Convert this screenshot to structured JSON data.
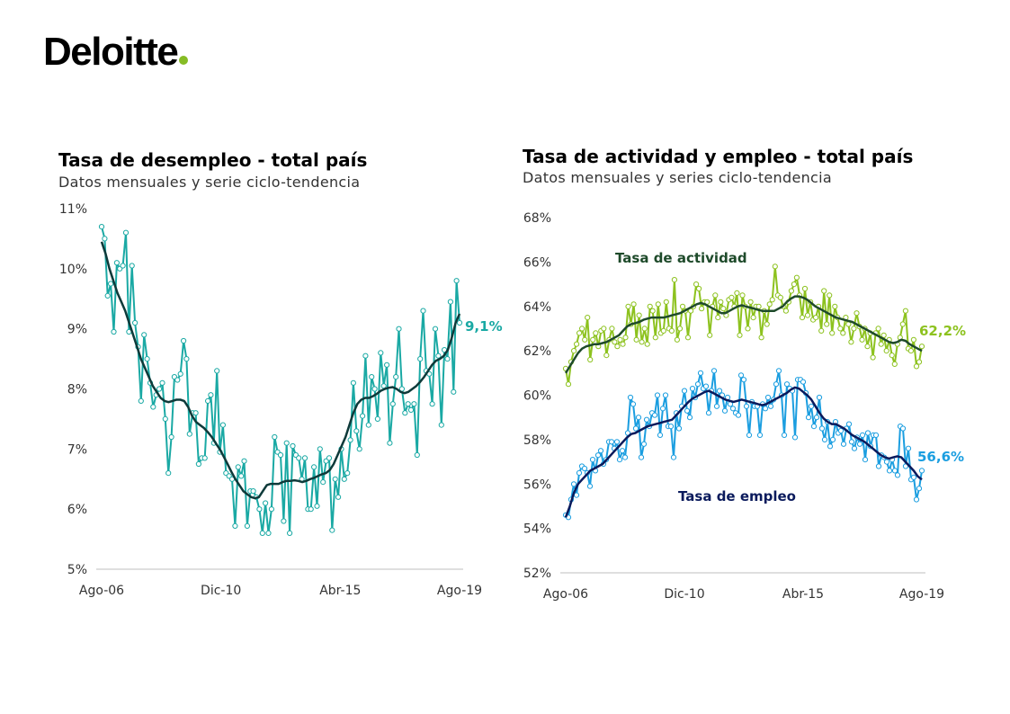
{
  "logo": {
    "text": "Deloitte",
    "dot_color": "#86bc25"
  },
  "colors": {
    "unemp_raw": "#1aa9a4",
    "unemp_trend": "#0e3a3a",
    "act_raw": "#8dc21f",
    "act_trend": "#1e4a2a",
    "emp_raw": "#1b9ee0",
    "emp_trend": "#0a1a5c",
    "axis": "#bfbfbf"
  },
  "chart_data": [
    {
      "type": "line",
      "title": "Tasa de desempleo - total país",
      "subtitle": "Datos mensuales y serie ciclo-tendencia",
      "x_tick_labels": [
        "Ago-06",
        "Dic-10",
        "Abr-15",
        "Ago-19"
      ],
      "y_tick_labels": [
        "5%",
        "6%",
        "7%",
        "8%",
        "9%",
        "10%",
        "11%"
      ],
      "ylim": [
        5,
        11
      ],
      "x_range": [
        "Ago-06",
        "Ago-19"
      ],
      "end_value_label": "9,1%",
      "series": [
        {
          "role": "monthly",
          "values": [
            10.7,
            10.5,
            9.55,
            9.75,
            8.95,
            10.1,
            10.0,
            10.05,
            10.6,
            8.95,
            10.05,
            9.1,
            8.7,
            7.8,
            8.9,
            8.5,
            8.1,
            7.7,
            7.9,
            8.0,
            8.1,
            7.5,
            6.6,
            7.2,
            8.2,
            8.15,
            8.25,
            8.8,
            8.5,
            7.25,
            7.6,
            7.6,
            6.75,
            6.85,
            6.85,
            7.8,
            7.9,
            7.1,
            8.3,
            6.95,
            7.4,
            6.6,
            6.55,
            6.5,
            5.72,
            6.7,
            6.55,
            6.8,
            5.72,
            6.3,
            6.3,
            6.2,
            6.0,
            5.6,
            6.1,
            5.6,
            6.0,
            7.2,
            6.95,
            6.9,
            5.8,
            7.1,
            5.6,
            7.05,
            6.9,
            6.85,
            6.5,
            6.85,
            6.0,
            6.0,
            6.7,
            6.05,
            7.0,
            6.45,
            6.8,
            6.85,
            5.65,
            6.5,
            6.2,
            7.0,
            6.5,
            6.6,
            7.15,
            8.1,
            7.3,
            7.0,
            7.55,
            8.55,
            7.4,
            8.2,
            8.0,
            7.5,
            8.6,
            8.05,
            8.4,
            7.1,
            7.75,
            8.2,
            9.0,
            8.0,
            7.6,
            7.75,
            7.65,
            7.75,
            6.9,
            8.5,
            9.3,
            8.3,
            8.25,
            7.75,
            9.0,
            8.55,
            7.4,
            8.65,
            8.5,
            9.45,
            7.95,
            9.8,
            9.1
          ]
        },
        {
          "role": "trend",
          "values": [
            10.45,
            10.25,
            10.0,
            9.8,
            9.6,
            9.45,
            9.3,
            9.1,
            8.9,
            8.7,
            8.5,
            8.35,
            8.2,
            8.05,
            7.95,
            7.85,
            7.8,
            7.78,
            7.8,
            7.82,
            7.82,
            7.8,
            7.7,
            7.55,
            7.45,
            7.4,
            7.35,
            7.28,
            7.2,
            7.1,
            7.0,
            6.88,
            6.75,
            6.62,
            6.5,
            6.4,
            6.3,
            6.25,
            6.2,
            6.18,
            6.2,
            6.3,
            6.4,
            6.42,
            6.42,
            6.42,
            6.45,
            6.47,
            6.47,
            6.48,
            6.47,
            6.45,
            6.47,
            6.5,
            6.52,
            6.55,
            6.58,
            6.6,
            6.65,
            6.75,
            6.9,
            7.05,
            7.2,
            7.4,
            7.6,
            7.75,
            7.82,
            7.85,
            7.85,
            7.88,
            7.92,
            7.97,
            8.0,
            8.02,
            8.03,
            8.0,
            7.95,
            7.93,
            7.95,
            8.0,
            8.05,
            8.12,
            8.2,
            8.3,
            8.4,
            8.47,
            8.5,
            8.55,
            8.65,
            8.85,
            9.1,
            9.25
          ]
        }
      ]
    },
    {
      "type": "line",
      "title": "Tasa de actividad y empleo - total país",
      "subtitle": "Datos mensuales y series ciclo-tendencia",
      "x_tick_labels": [
        "Ago-06",
        "Dic-10",
        "Abr-15",
        "Ago-19"
      ],
      "y_tick_labels": [
        "52%",
        "54%",
        "56%",
        "58%",
        "60%",
        "62%",
        "64%",
        "66%",
        "68%"
      ],
      "ylim": [
        52,
        68
      ],
      "x_range": [
        "Ago-06",
        "Ago-19"
      ],
      "series": [
        {
          "name": "Tasa de actividad",
          "role": "monthly",
          "end_value_label": "62,2%",
          "values": [
            61.2,
            60.5,
            61.5,
            62.0,
            62.3,
            62.8,
            63.0,
            62.5,
            63.5,
            61.6,
            62.5,
            62.8,
            62.2,
            62.9,
            63.0,
            61.8,
            62.5,
            63.0,
            62.4,
            62.2,
            62.5,
            62.3,
            62.6,
            64.0,
            63.2,
            64.1,
            62.5,
            63.6,
            62.4,
            63.0,
            62.3,
            64.0,
            63.8,
            62.6,
            64.1,
            62.8,
            62.9,
            64.2,
            63.0,
            62.9,
            65.2,
            62.5,
            63.0,
            64.0,
            63.8,
            62.6,
            63.8,
            64.0,
            65.0,
            64.8,
            63.9,
            64.2,
            64.2,
            62.7,
            64.0,
            64.5,
            63.5,
            64.2,
            63.9,
            63.6,
            64.3,
            64.4,
            64.0,
            64.6,
            62.7,
            64.5,
            64.0,
            63.0,
            64.2,
            63.5,
            64.0,
            64.0,
            62.6,
            63.8,
            63.2,
            64.1,
            64.3,
            65.8,
            64.5,
            64.4,
            64.0,
            63.8,
            64.2,
            64.7,
            65.0,
            65.3,
            64.5,
            63.5,
            64.8,
            63.6,
            64.2,
            63.4,
            63.5,
            64.0,
            62.9,
            64.7,
            63.2,
            64.5,
            62.8,
            64.0,
            63.5,
            63.0,
            62.8,
            63.5,
            63.2,
            62.4,
            63.0,
            63.7,
            63.1,
            62.5,
            63.0,
            62.2,
            62.8,
            61.7,
            62.8,
            63.0,
            62.3,
            62.7,
            62.0,
            62.5,
            61.8,
            61.4,
            62.3,
            62.6,
            63.2,
            63.8,
            62.1,
            62.0,
            62.5,
            61.3,
            61.5,
            62.2
          ]
        },
        {
          "name": "Tasa de actividad",
          "role": "trend",
          "values": [
            61.0,
            61.3,
            61.6,
            61.9,
            62.1,
            62.2,
            62.25,
            62.3,
            62.3,
            62.35,
            62.4,
            62.5,
            62.6,
            62.7,
            62.9,
            63.1,
            63.2,
            63.25,
            63.3,
            63.4,
            63.45,
            63.5,
            63.5,
            63.5,
            63.5,
            63.55,
            63.6,
            63.65,
            63.7,
            63.8,
            63.9,
            64.0,
            64.1,
            64.15,
            64.1,
            64.0,
            63.9,
            63.8,
            63.7,
            63.7,
            63.8,
            63.9,
            64.0,
            64.05,
            64.0,
            63.95,
            63.9,
            63.85,
            63.8,
            63.8,
            63.8,
            63.8,
            63.9,
            64.0,
            64.2,
            64.35,
            64.45,
            64.45,
            64.4,
            64.3,
            64.15,
            64.0,
            63.9,
            63.8,
            63.7,
            63.6,
            63.5,
            63.45,
            63.4,
            63.35,
            63.3,
            63.2,
            63.1,
            63.0,
            62.9,
            62.8,
            62.7,
            62.6,
            62.5,
            62.4,
            62.35,
            62.4,
            62.5,
            62.45,
            62.3,
            62.2,
            62.1,
            62.0
          ]
        },
        {
          "name": "Tasa de empleo",
          "role": "monthly",
          "end_value_label": "56,6%",
          "values": [
            54.6,
            54.5,
            55.3,
            56.0,
            55.5,
            56.5,
            56.8,
            56.7,
            56.5,
            55.9,
            57.1,
            56.6,
            57.3,
            57.5,
            56.9,
            57.1,
            57.9,
            57.9,
            57.6,
            57.9,
            57.1,
            57.5,
            57.2,
            58.3,
            59.9,
            59.6,
            58.5,
            59.0,
            57.2,
            57.8,
            58.9,
            58.6,
            59.2,
            59.1,
            60.0,
            58.2,
            59.4,
            60.0,
            58.6,
            58.6,
            57.2,
            59.2,
            58.5,
            59.5,
            60.2,
            59.3,
            59.0,
            60.3,
            59.9,
            60.5,
            61.0,
            60.3,
            60.4,
            59.2,
            60.2,
            61.1,
            59.5,
            60.2,
            60.0,
            59.3,
            59.9,
            59.6,
            59.4,
            59.2,
            59.1,
            60.9,
            60.7,
            59.5,
            58.2,
            59.7,
            59.5,
            59.5,
            58.2,
            59.6,
            59.4,
            59.9,
            59.5,
            59.8,
            60.5,
            61.1,
            60.0,
            58.2,
            60.5,
            60.3,
            60.2,
            58.1,
            60.7,
            60.7,
            60.6,
            60.1,
            59.0,
            59.5,
            58.6,
            59.0,
            59.9,
            58.5,
            58.0,
            58.8,
            57.7,
            58.0,
            58.8,
            58.3,
            58.4,
            57.8,
            58.5,
            58.7,
            57.9,
            57.6,
            58.1,
            57.8,
            58.2,
            57.1,
            58.3,
            57.7,
            58.2,
            58.2,
            56.8,
            57.3,
            57.2,
            57.0,
            56.6,
            57.1,
            56.6,
            56.4,
            58.6,
            58.5,
            56.8,
            57.6,
            56.2,
            56.3,
            55.3,
            55.8,
            56.6
          ]
        },
        {
          "name": "Tasa de empleo",
          "role": "trend",
          "values": [
            54.5,
            55.0,
            55.6,
            56.0,
            56.2,
            56.4,
            56.6,
            56.7,
            56.8,
            56.9,
            57.1,
            57.3,
            57.5,
            57.7,
            57.9,
            58.1,
            58.25,
            58.3,
            58.4,
            58.5,
            58.6,
            58.65,
            58.7,
            58.75,
            58.8,
            58.85,
            58.9,
            59.1,
            59.3,
            59.5,
            59.7,
            59.85,
            59.95,
            60.05,
            60.15,
            60.2,
            60.1,
            60.0,
            59.9,
            59.8,
            59.75,
            59.7,
            59.75,
            59.8,
            59.75,
            59.7,
            59.65,
            59.6,
            59.55,
            59.6,
            59.7,
            59.8,
            59.9,
            60.0,
            60.1,
            60.25,
            60.35,
            60.3,
            60.15,
            60.0,
            59.8,
            59.5,
            59.2,
            58.95,
            58.8,
            58.7,
            58.7,
            58.6,
            58.5,
            58.35,
            58.2,
            58.1,
            58.0,
            57.9,
            57.75,
            57.6,
            57.45,
            57.3,
            57.2,
            57.15,
            57.2,
            57.25,
            57.2,
            57.0,
            56.8,
            56.6,
            56.35,
            56.2
          ]
        }
      ]
    }
  ]
}
